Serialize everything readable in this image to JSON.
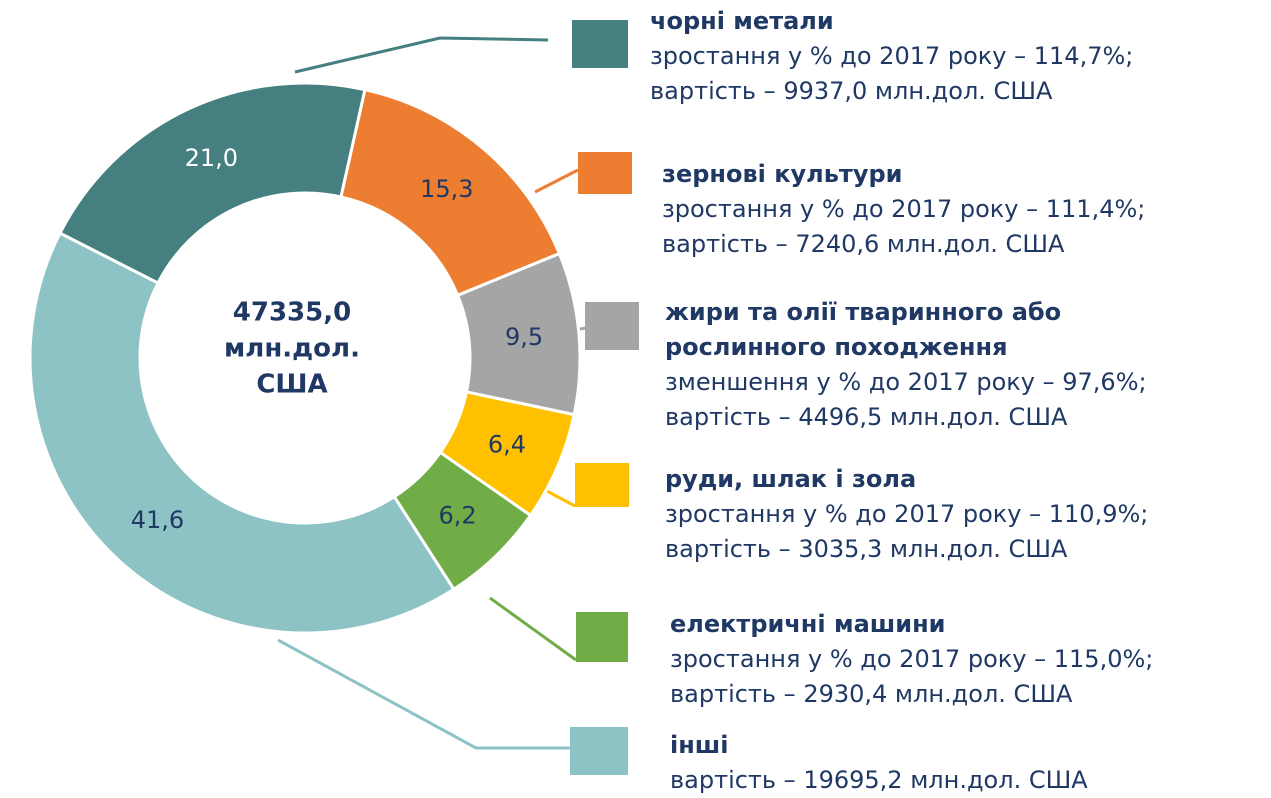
{
  "chart_data": {
    "type": "pie",
    "categories": [
      "чорні метали",
      "зернові культури",
      "жири та олії тваринного або рослинного походження",
      "руди, шлак і зола",
      "електричні машини",
      "інші"
    ],
    "values": [
      21.0,
      15.3,
      9.5,
      6.4,
      6.2,
      41.6
    ],
    "value_labels": [
      "21,0",
      "15,3",
      "9,5",
      "6,4",
      "6,2",
      "41,6"
    ],
    "colors": [
      "#467f7f",
      "#ed7d31",
      "#a5a5a5",
      "#ffc000",
      "#70ad47",
      "#8dc3c4"
    ],
    "center_text": [
      "47335,0",
      "млн.дол.",
      "США"
    ],
    "descriptions": [
      [
        "зростання у % до 2017 року – 114,7%;",
        "вартість – 9937,0 млн.дол. США"
      ],
      [
        "зростання у % до 2017 року – 111,4%;",
        "вартість – 7240,6 млн.дол. США"
      ],
      [
        "зменшення у % до 2017 року – 97,6%;",
        "вартість – 4496,5 млн.дол. США"
      ],
      [
        "зростання у % до 2017 року – 110,9%;",
        "вартість – 3035,3 млн.дол. США"
      ],
      [
        "зростання у % до 2017 року – 115,0%;",
        "вартість – 2930,4 млн.дол. США"
      ],
      [
        "вартість – 19695,2 млн.дол. США"
      ]
    ]
  }
}
